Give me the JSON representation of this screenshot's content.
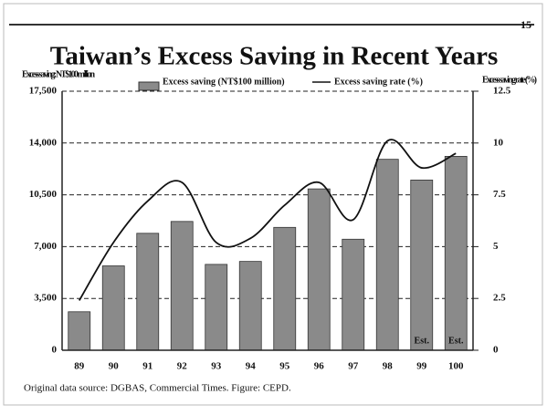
{
  "page_number": "15",
  "source": "Original data source: DGBAS, Commercial Times. Figure: CEPD.",
  "chart_data": {
    "type": "bar-line",
    "title": "Taiwan’s Excess Saving in Recent Years",
    "y_label": "Excess saving: NT$100 million",
    "y2_label": "Excess saving rate (%)",
    "categories": [
      "89",
      "90",
      "91",
      "92",
      "93",
      "94",
      "95",
      "96",
      "97",
      "98",
      "99",
      "100"
    ],
    "series": [
      {
        "name": "Excess saving (NT$100 million)",
        "type": "bar",
        "color": "#8a8a8a",
        "values": [
          2600,
          5700,
          7900,
          8700,
          5800,
          6000,
          8300,
          10900,
          7500,
          12900,
          11500,
          13100
        ]
      },
      {
        "name": "Excess saving rate (%)",
        "type": "line",
        "axis": "y2",
        "color": "#111111",
        "values": [
          2.4,
          5.2,
          7.2,
          8.1,
          5.2,
          5.4,
          7.0,
          8.1,
          6.3,
          10.1,
          8.8,
          9.5
        ]
      }
    ],
    "annotations": [
      "Est.",
      "Est."
    ],
    "ylim": [
      0,
      17500
    ],
    "yticks": [
      0,
      {
        "value": 3500,
        "label": "3,500"
      },
      {
        "value": 7000,
        "label": "7,000"
      },
      {
        "value": 10500,
        "label": "10,500"
      },
      {
        "value": 14000,
        "label": "14,000"
      },
      {
        "value": 17500,
        "label": "17,500"
      }
    ],
    "y2lim": [
      0,
      12.5
    ],
    "y2ticks": [
      0,
      2.5,
      5,
      7.5,
      10,
      12.5
    ],
    "grid": true
  }
}
